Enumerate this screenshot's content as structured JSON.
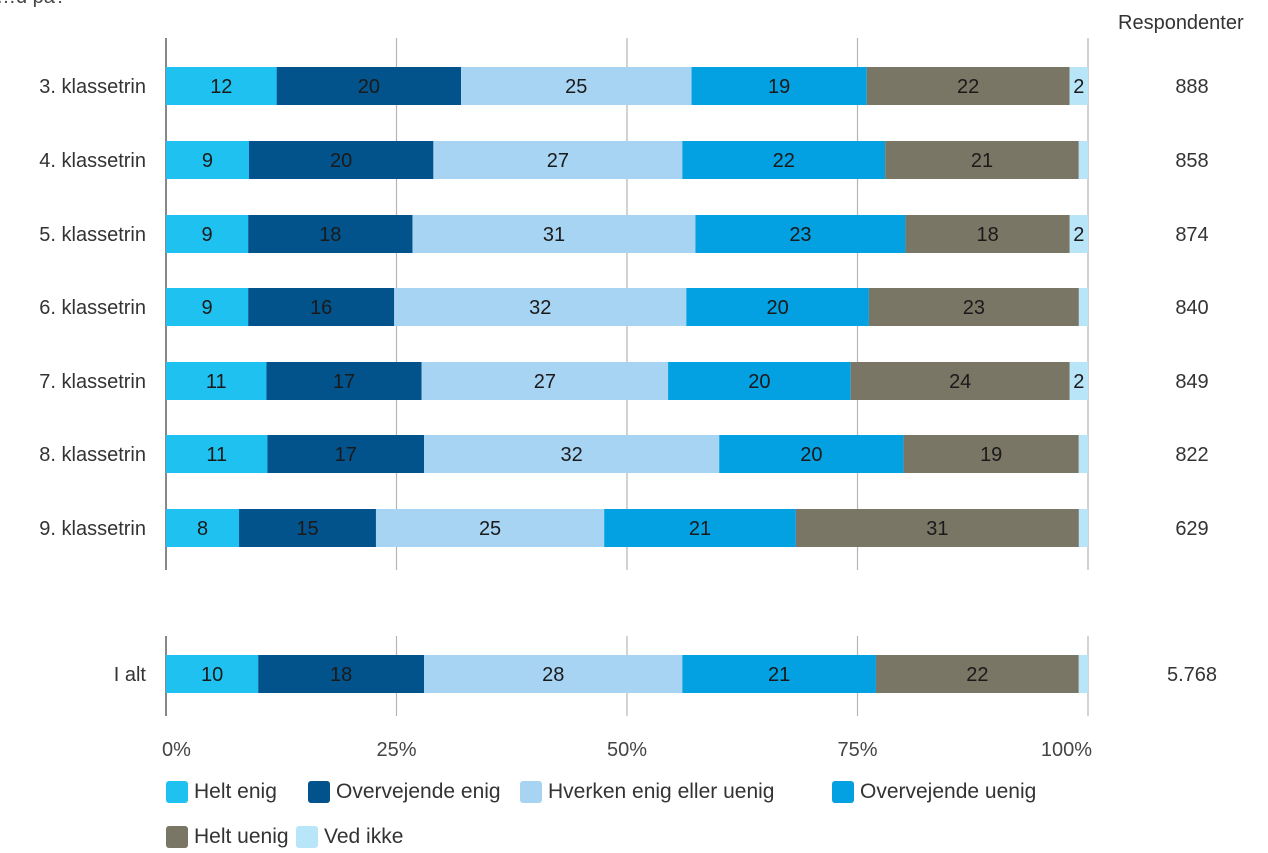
{
  "chart_data": {
    "type": "bar",
    "orientation": "horizontal-stacked-100",
    "title": "…d på?",
    "right_column_header": "Respondenter",
    "series": [
      {
        "name": "Helt enig",
        "color": "#1fc1f0"
      },
      {
        "name": "Overvejende enig",
        "color": "#02538b"
      },
      {
        "name": "Hverken enig eller uenig",
        "color": "#a8d4f4"
      },
      {
        "name": "Overvejende uenig",
        "color": "#03a0e2"
      },
      {
        "name": "Helt uenig",
        "color": "#7a7666"
      },
      {
        "name": "Ved ikke",
        "color": "#b9e5f8"
      }
    ],
    "rows": [
      {
        "label": "3. klassetrin",
        "values": [
          12,
          20,
          25,
          19,
          22,
          2
        ],
        "labels": [
          "12",
          "20",
          "25",
          "19",
          "22",
          "2"
        ],
        "respondents": "888"
      },
      {
        "label": "4. klassetrin",
        "values": [
          9,
          20,
          27,
          22,
          21,
          1
        ],
        "labels": [
          "9",
          "20",
          "27",
          "22",
          "21",
          ""
        ],
        "respondents": "858"
      },
      {
        "label": "5. klassetrin",
        "values": [
          9,
          18,
          31,
          23,
          18,
          2
        ],
        "labels": [
          "9",
          "18",
          "31",
          "23",
          "18",
          "2"
        ],
        "respondents": "874"
      },
      {
        "label": "6. klassetrin",
        "values": [
          9,
          16,
          32,
          20,
          23,
          1
        ],
        "labels": [
          "9",
          "16",
          "32",
          "20",
          "23",
          ""
        ],
        "respondents": "840"
      },
      {
        "label": "7. klassetrin",
        "values": [
          11,
          17,
          27,
          20,
          24,
          2
        ],
        "labels": [
          "11",
          "17",
          "27",
          "20",
          "24",
          "2"
        ],
        "respondents": "849"
      },
      {
        "label": "8. klassetrin",
        "values": [
          11,
          17,
          32,
          20,
          19,
          1
        ],
        "labels": [
          "11",
          "17",
          "32",
          "20",
          "19",
          ""
        ],
        "respondents": "822"
      },
      {
        "label": "9. klassetrin",
        "values": [
          8,
          15,
          25,
          21,
          31,
          1
        ],
        "labels": [
          "8",
          "15",
          "25",
          "21",
          "31",
          ""
        ],
        "respondents": "629"
      }
    ],
    "total": {
      "label": "I alt",
      "values": [
        10,
        18,
        28,
        21,
        22,
        1
      ],
      "labels": [
        "10",
        "18",
        "28",
        "21",
        "22",
        ""
      ],
      "respondents": "5.768"
    },
    "xlim": [
      0,
      100
    ],
    "xticks": [
      "0%",
      "25%",
      "50%",
      "75%",
      "100%"
    ],
    "grid": true,
    "legend_position": "bottom"
  }
}
